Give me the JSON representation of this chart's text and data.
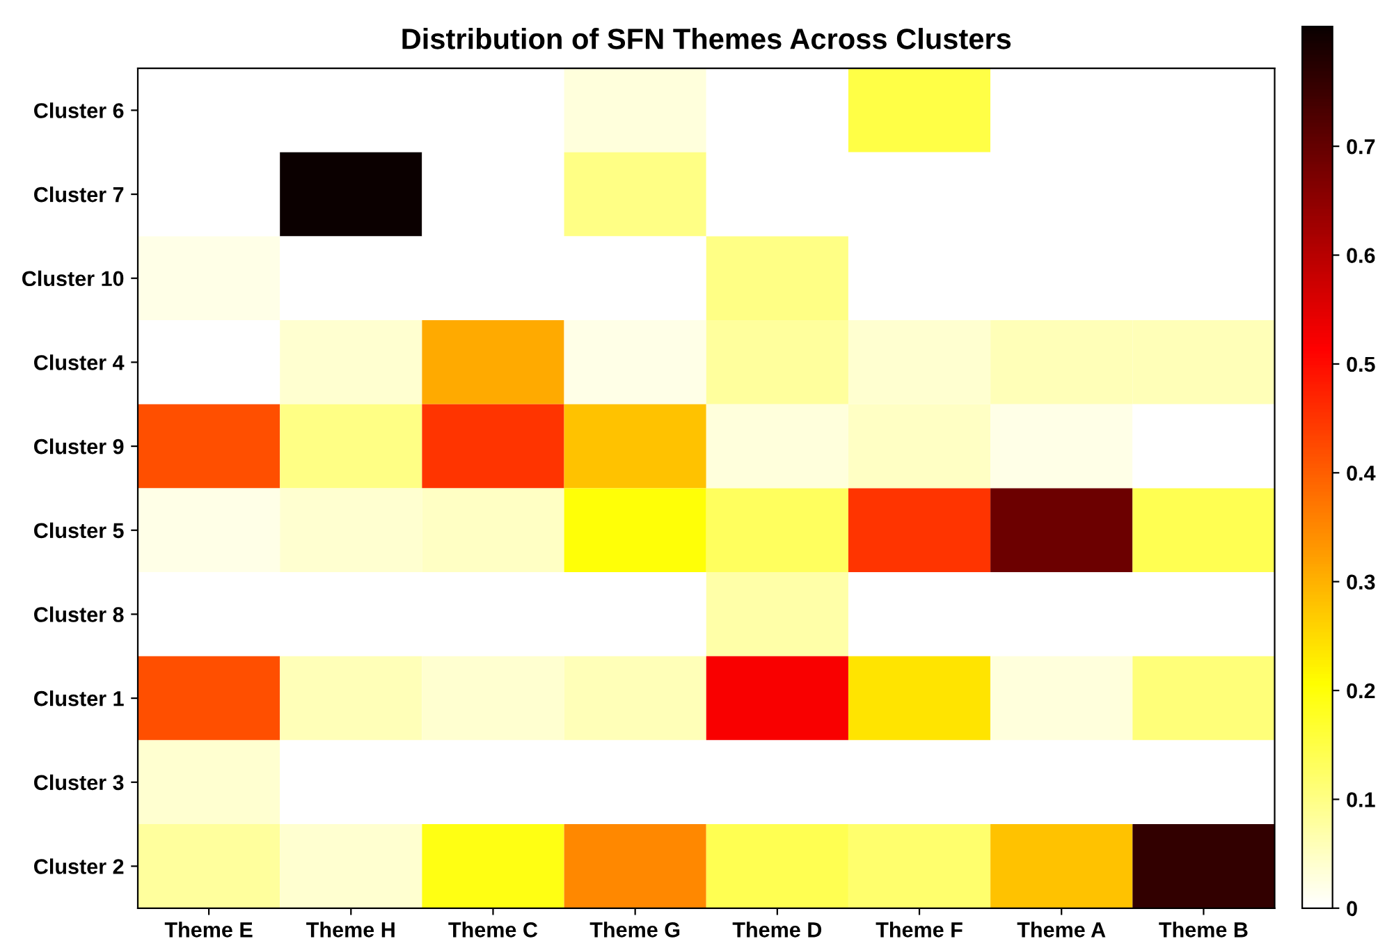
{
  "chart_data": {
    "type": "heatmap",
    "title": "Distribution of SFN Themes Across Clusters",
    "categories": [
      "Theme E",
      "Theme H",
      "Theme C",
      "Theme G",
      "Theme D",
      "Theme F",
      "Theme A",
      "Theme B"
    ],
    "y_categories": [
      "Cluster 6",
      "Cluster 7",
      "Cluster 10",
      "Cluster 4",
      "Cluster 9",
      "Cluster 5",
      "Cluster 8",
      "Cluster 1",
      "Cluster 3",
      "Cluster 2"
    ],
    "cells": [
      [
        0,
        0,
        0,
        0.03,
        0,
        0.15,
        0,
        0
      ],
      [
        0,
        0.81,
        0,
        0.1,
        0,
        0,
        0,
        0
      ],
      [
        0.02,
        0,
        0,
        0,
        0.1,
        0,
        0,
        0
      ],
      [
        0,
        0.04,
        0.31,
        0.02,
        0.08,
        0.04,
        0.06,
        0.06
      ],
      [
        0.42,
        0.1,
        0.45,
        0.28,
        0.03,
        0.05,
        0.02,
        0
      ],
      [
        0.02,
        0.04,
        0.05,
        0.2,
        0.13,
        0.45,
        0.69,
        0.14
      ],
      [
        0,
        0,
        0,
        0,
        0.07,
        0,
        0,
        0
      ],
      [
        0.42,
        0.06,
        0.04,
        0.06,
        0.52,
        0.24,
        0.03,
        0.11
      ],
      [
        0.04,
        0,
        0,
        0,
        0,
        0,
        0,
        0
      ],
      [
        0.08,
        0.04,
        0.19,
        0.35,
        0.14,
        0.12,
        0.28,
        0.76
      ]
    ],
    "clim": [
      0,
      0.81
    ],
    "cticks": [
      0,
      0.1,
      0.2,
      0.3,
      0.4,
      0.5,
      0.6,
      0.7
    ]
  }
}
